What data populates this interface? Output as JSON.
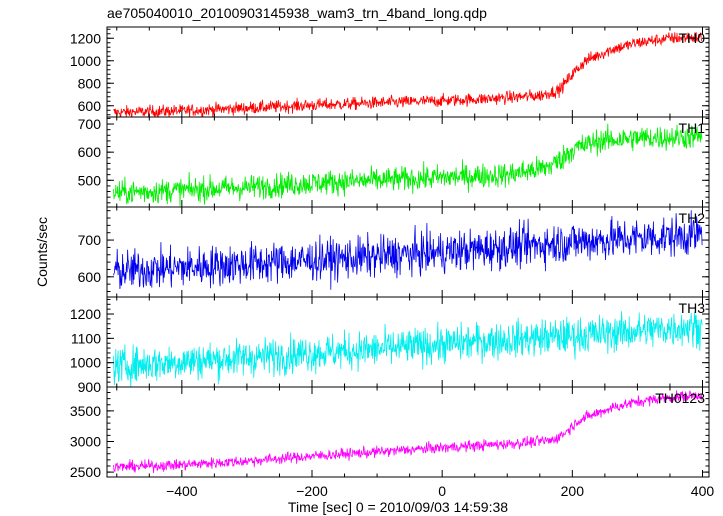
{
  "chart_data": {
    "type": "line",
    "title": "ae705040010_20100903145938_wam3_trn_4band_long.qdp",
    "xlabel": "Time [sec] 0 = 2010/09/03 14:59:38",
    "ylabel": "Counts/sec",
    "xlim": [
      -515,
      410
    ],
    "x_ticks": [
      -400,
      -200,
      0,
      200,
      400
    ],
    "x_tick_labels": [
      "−400",
      "−200",
      "0",
      "200",
      "400"
    ],
    "grid": false,
    "panels": [
      {
        "name": "TH0",
        "color": "#ff0000",
        "ylim": [
          500,
          1300
        ],
        "y_ticks": [
          600,
          800,
          1000,
          1200
        ],
        "noise": 28,
        "points": [
          [
            -505,
            540
          ],
          [
            -400,
            555
          ],
          [
            -300,
            580
          ],
          [
            -200,
            605
          ],
          [
            -100,
            625
          ],
          [
            0,
            645
          ],
          [
            80,
            665
          ],
          [
            150,
            690
          ],
          [
            180,
            740
          ],
          [
            200,
            880
          ],
          [
            220,
            1000
          ],
          [
            260,
            1100
          ],
          [
            300,
            1160
          ],
          [
            350,
            1200
          ],
          [
            400,
            1210
          ]
        ]
      },
      {
        "name": "TH1",
        "color": "#00ee00",
        "ylim": [
          405,
          725
        ],
        "y_ticks": [
          500,
          600,
          700
        ],
        "noise": 22,
        "points": [
          [
            -505,
            455
          ],
          [
            -400,
            465
          ],
          [
            -300,
            475
          ],
          [
            -200,
            490
          ],
          [
            -100,
            500
          ],
          [
            0,
            510
          ],
          [
            100,
            520
          ],
          [
            160,
            545
          ],
          [
            180,
            570
          ],
          [
            200,
            610
          ],
          [
            240,
            640
          ],
          [
            300,
            650
          ],
          [
            400,
            655
          ]
        ]
      },
      {
        "name": "TH2",
        "color": "#0000ee",
        "ylim": [
          545,
          790
        ],
        "y_ticks": [
          600,
          700
        ],
        "noise": 28,
        "points": [
          [
            -505,
            615
          ],
          [
            -400,
            625
          ],
          [
            -300,
            635
          ],
          [
            -200,
            645
          ],
          [
            -100,
            655
          ],
          [
            0,
            667
          ],
          [
            100,
            680
          ],
          [
            200,
            695
          ],
          [
            300,
            705
          ],
          [
            400,
            715
          ]
        ]
      },
      {
        "name": "TH3",
        "color": "#00eeee",
        "ylim": [
          900,
          1270
        ],
        "y_ticks": [
          900,
          1000,
          1100,
          1200
        ],
        "noise": 38,
        "points": [
          [
            -505,
            985
          ],
          [
            -400,
            1005
          ],
          [
            -300,
            1020
          ],
          [
            -200,
            1040
          ],
          [
            -100,
            1055
          ],
          [
            0,
            1075
          ],
          [
            100,
            1095
          ],
          [
            200,
            1110
          ],
          [
            300,
            1130
          ],
          [
            400,
            1150
          ]
        ]
      },
      {
        "name": "TH0123",
        "color": "#ff00ff",
        "ylim": [
          2420,
          3890
        ],
        "y_ticks": [
          2500,
          3000,
          3500
        ],
        "noise": 45,
        "points": [
          [
            -505,
            2580
          ],
          [
            -400,
            2620
          ],
          [
            -300,
            2680
          ],
          [
            -200,
            2760
          ],
          [
            -100,
            2830
          ],
          [
            0,
            2900
          ],
          [
            100,
            2960
          ],
          [
            170,
            3020
          ],
          [
            190,
            3150
          ],
          [
            210,
            3350
          ],
          [
            260,
            3550
          ],
          [
            300,
            3650
          ],
          [
            350,
            3720
          ],
          [
            400,
            3760
          ]
        ]
      }
    ]
  }
}
